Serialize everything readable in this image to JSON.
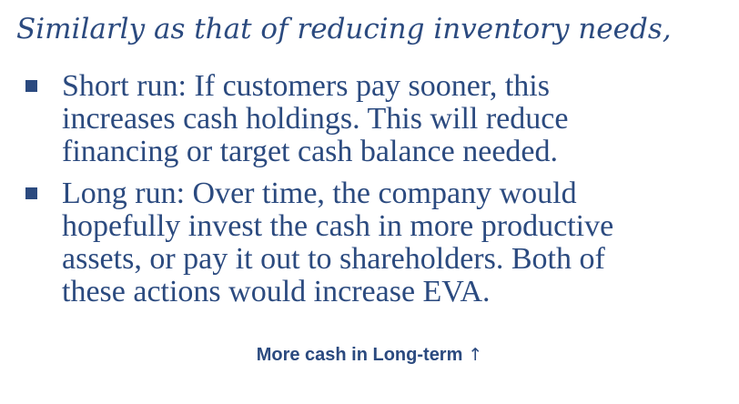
{
  "intro": "Similarly as that of reducing inventory needs,",
  "bullets": [
    {
      "lines": [
        "Short run:  If customers pay sooner, this",
        "increases cash holdings.  This will reduce",
        "financing or target cash balance needed."
      ]
    },
    {
      "lines": [
        "Long run:  Over time, the company would",
        "hopefully invest the cash in more productive",
        "assets, or pay it out to shareholders.  Both of",
        "these actions would increase EVA."
      ]
    }
  ],
  "footer": {
    "text": "More cash in Long-term",
    "arrow": "↑",
    "arrow_icon": "up-arrow-icon"
  },
  "colors": {
    "text": "#2b4a7f",
    "background": "#ffffff"
  }
}
